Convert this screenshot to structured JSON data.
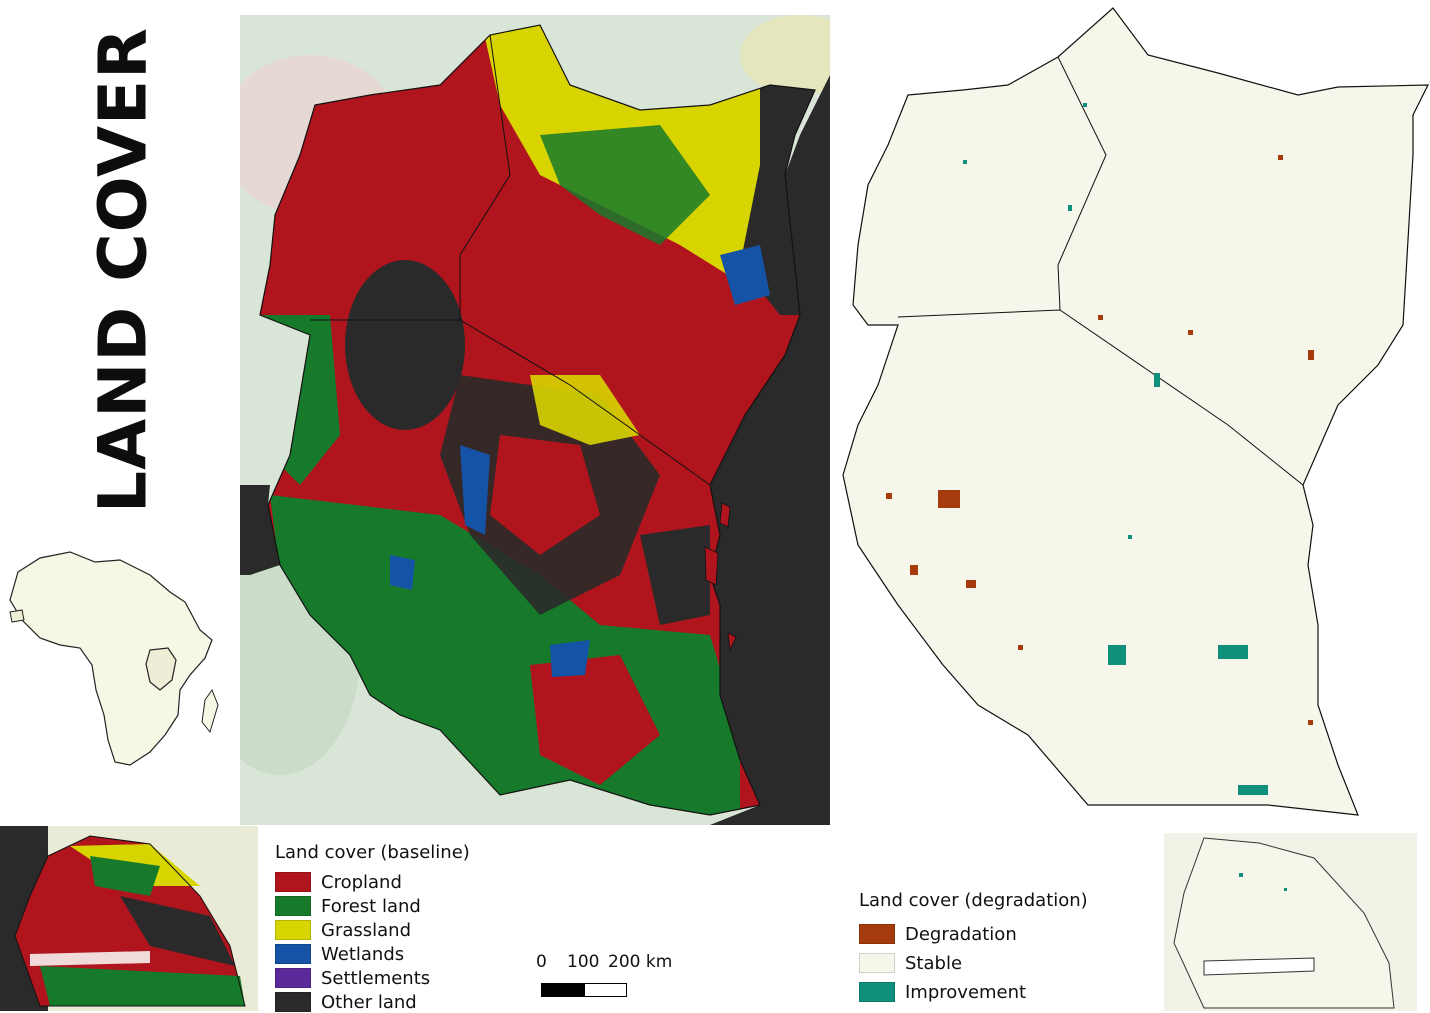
{
  "title": "LAND COVER",
  "baseline_legend": {
    "title": "Land cover (baseline)",
    "items": [
      {
        "label": "Cropland",
        "color": "#b0141c"
      },
      {
        "label": "Forest land",
        "color": "#177a2a"
      },
      {
        "label": "Grassland",
        "color": "#d8d400"
      },
      {
        "label": "Wetlands",
        "color": "#1553a6"
      },
      {
        "label": "Settlements",
        "color": "#5a2a9a"
      },
      {
        "label": "Other land",
        "color": "#2a2a2a"
      }
    ]
  },
  "degradation_legend": {
    "title": "Land cover (degradation)",
    "items": [
      {
        "label": "Degradation",
        "color": "#a53a0c"
      },
      {
        "label": "Stable",
        "color": "#f6f6ea"
      },
      {
        "label": "Improvement",
        "color": "#0f8f7c"
      }
    ]
  },
  "scale_bar": {
    "ticks": [
      "0",
      "100",
      "200 km"
    ]
  },
  "colors": {
    "background_map": "#d6e3d6",
    "stable_fill": "#f6f6ea",
    "border": "#1a1a1a",
    "ocean": "#2a2a2a"
  }
}
